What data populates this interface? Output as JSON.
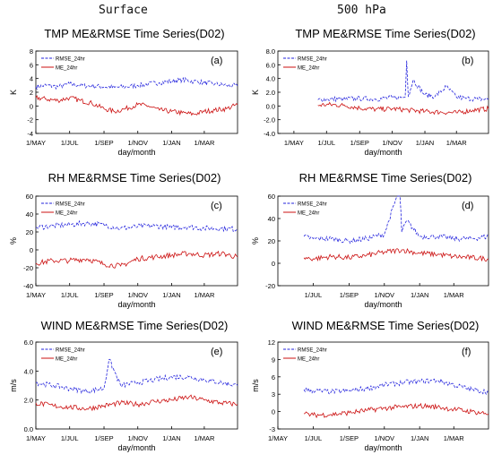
{
  "column_headers": [
    "Surface",
    "500 hPa"
  ],
  "colors": {
    "rmse": "#2222dd",
    "me": "#cc1111",
    "axis": "#000000"
  },
  "chart_data": [
    {
      "type": "line",
      "panel_label": "(a)",
      "title": "TMP ME&RMSE Time Series(D02)",
      "xlabel": "day/month",
      "ylabel": "K",
      "x_tick_labels": [
        "1/MAY",
        "1/JUL",
        "1/SEP",
        "1/NOV",
        "1/JAN",
        "1/MAR"
      ],
      "xlim": [
        "2016-05-01",
        "2017-04-30"
      ],
      "ylim": [
        -4,
        8
      ],
      "y_ticks": [
        -4,
        -2,
        0,
        2,
        4,
        6,
        8
      ],
      "y_tick_labels": [
        "-4",
        "-2",
        "0",
        "2",
        "4",
        "6",
        "8"
      ],
      "legend_position": "top-left",
      "series": [
        {
          "name": "RMSE_24hr",
          "style": "dashed",
          "color": "#2222dd",
          "x": [
            "2016-05-01",
            "2016-05-20",
            "2016-06-10",
            "2016-07-01",
            "2016-07-20",
            "2016-08-10",
            "2016-09-01",
            "2016-09-20",
            "2016-10-10",
            "2016-11-01",
            "2016-11-20",
            "2016-12-10",
            "2017-01-01",
            "2017-01-20",
            "2017-02-10",
            "2017-03-01",
            "2017-03-20",
            "2017-04-10",
            "2017-04-30"
          ],
          "values": [
            2.8,
            3.0,
            2.8,
            3.2,
            3.0,
            2.9,
            2.8,
            2.7,
            2.8,
            3.0,
            3.2,
            3.4,
            3.6,
            3.8,
            3.6,
            3.4,
            3.2,
            3.0,
            2.9
          ]
        },
        {
          "name": "ME_24hr",
          "style": "solid",
          "color": "#cc1111",
          "x": [
            "2016-05-01",
            "2016-05-20",
            "2016-06-10",
            "2016-07-01",
            "2016-07-20",
            "2016-08-10",
            "2016-09-01",
            "2016-09-20",
            "2016-10-10",
            "2016-11-01",
            "2016-11-20",
            "2016-12-10",
            "2017-01-01",
            "2017-01-20",
            "2017-02-10",
            "2017-03-01",
            "2017-03-20",
            "2017-04-10",
            "2017-04-30"
          ],
          "values": [
            1.2,
            1.0,
            0.8,
            1.2,
            0.8,
            0.4,
            -0.4,
            -0.8,
            -0.4,
            0.2,
            0.0,
            -0.6,
            -0.8,
            -1.0,
            -1.2,
            -0.8,
            -0.6,
            -0.4,
            0.2
          ]
        }
      ]
    },
    {
      "type": "line",
      "panel_label": "(b)",
      "title": "TMP ME&RMSE Time Series(D02)",
      "xlabel": "day/month",
      "ylabel": "K",
      "x_tick_labels": [
        "1/MAY",
        "1/JUL",
        "1/SEP",
        "1/NOV",
        "1/JAN",
        "1/MAR"
      ],
      "xlim": [
        "2016-04-01",
        "2017-04-30"
      ],
      "ylim": [
        -4,
        8
      ],
      "y_ticks": [
        -4,
        -2,
        0,
        2,
        4,
        6,
        8
      ],
      "y_tick_labels": [
        "-4.0",
        "-2.0",
        "0.0",
        "2.0",
        "4.0",
        "6.0",
        "8.0"
      ],
      "legend_position": "top-left",
      "series": [
        {
          "name": "RMSE_24hr",
          "style": "dashed",
          "color": "#2222dd",
          "x": [
            "2016-06-15",
            "2016-07-01",
            "2016-08-01",
            "2016-09-01",
            "2016-10-01",
            "2016-11-01",
            "2016-11-25",
            "2016-11-28",
            "2016-12-01",
            "2016-12-10",
            "2017-01-01",
            "2017-01-20",
            "2017-02-10",
            "2017-03-01",
            "2017-03-20",
            "2017-04-10",
            "2017-04-30"
          ],
          "values": [
            0.9,
            1.0,
            1.0,
            1.1,
            1.0,
            1.2,
            1.3,
            6.6,
            1.4,
            3.8,
            1.6,
            1.4,
            2.8,
            1.3,
            1.1,
            1.0,
            1.0
          ]
        },
        {
          "name": "ME_24hr",
          "style": "solid",
          "color": "#cc1111",
          "x": [
            "2016-06-15",
            "2016-07-01",
            "2016-08-01",
            "2016-09-01",
            "2016-10-01",
            "2016-11-01",
            "2016-12-01",
            "2017-01-01",
            "2017-02-01",
            "2017-03-01",
            "2017-04-01",
            "2017-04-30"
          ],
          "values": [
            0.1,
            0.2,
            0.1,
            -0.3,
            -0.5,
            -0.4,
            -0.6,
            -0.8,
            -0.9,
            -1.0,
            -0.6,
            -0.4
          ]
        }
      ]
    },
    {
      "type": "line",
      "panel_label": "(c)",
      "title": "RH ME&RMSE Time Series(D02)",
      "xlabel": "day/month",
      "ylabel": "%",
      "x_tick_labels": [
        "1/MAY",
        "1/JUL",
        "1/SEP",
        "1/NOV",
        "1/JAN",
        "1/MAR"
      ],
      "xlim": [
        "2016-05-01",
        "2017-04-30"
      ],
      "ylim": [
        -40,
        60
      ],
      "y_ticks": [
        -40,
        -20,
        0,
        20,
        40,
        60
      ],
      "y_tick_labels": [
        "-40",
        "-20",
        "0",
        "20",
        "40",
        "60"
      ],
      "legend_position": "top-left",
      "series": [
        {
          "name": "RMSE_24hr",
          "style": "dashed",
          "color": "#2222dd",
          "x": [
            "2016-05-01",
            "2016-06-01",
            "2016-07-01",
            "2016-08-01",
            "2016-09-01",
            "2016-10-01",
            "2016-11-01",
            "2016-12-01",
            "2017-01-01",
            "2017-02-01",
            "2017-03-01",
            "2017-04-01",
            "2017-04-30"
          ],
          "values": [
            25,
            27,
            28,
            30,
            28,
            24,
            26,
            27,
            25,
            26,
            24,
            24,
            23
          ]
        },
        {
          "name": "ME_24hr",
          "style": "solid",
          "color": "#cc1111",
          "x": [
            "2016-05-01",
            "2016-06-01",
            "2016-07-01",
            "2016-08-01",
            "2016-09-01",
            "2016-10-01",
            "2016-11-01",
            "2016-12-01",
            "2017-01-01",
            "2017-02-01",
            "2017-03-01",
            "2017-04-01",
            "2017-04-30"
          ],
          "values": [
            -15,
            -12,
            -12,
            -10,
            -16,
            -18,
            -10,
            -8,
            -6,
            -4,
            -6,
            -4,
            -8
          ]
        }
      ]
    },
    {
      "type": "line",
      "panel_label": "(d)",
      "title": "RH ME&RMSE Time Series(D02)",
      "xlabel": "day/month",
      "ylabel": "%",
      "x_tick_labels": [
        "1/JUL",
        "1/SEP",
        "1/NOV",
        "1/JAN",
        "1/MAR"
      ],
      "xlim": [
        "2016-05-01",
        "2017-04-30"
      ],
      "ylim": [
        -20,
        60
      ],
      "y_ticks": [
        -20,
        0,
        20,
        40,
        60
      ],
      "y_tick_labels": [
        "-20",
        "0",
        "20",
        "40",
        "60"
      ],
      "legend_position": "top-left",
      "series": [
        {
          "name": "RMSE_24hr",
          "style": "dashed",
          "color": "#2222dd",
          "x": [
            "2016-06-15",
            "2016-07-01",
            "2016-08-01",
            "2016-09-01",
            "2016-10-01",
            "2016-11-01",
            "2016-11-28",
            "2016-12-01",
            "2016-12-10",
            "2017-01-01",
            "2017-02-01",
            "2017-03-01",
            "2017-04-01",
            "2017-04-30"
          ],
          "values": [
            24,
            22,
            22,
            20,
            22,
            26,
            68,
            28,
            38,
            24,
            24,
            22,
            22,
            24
          ]
        },
        {
          "name": "ME_24hr",
          "style": "solid",
          "color": "#cc1111",
          "x": [
            "2016-06-15",
            "2016-07-01",
            "2016-08-01",
            "2016-09-01",
            "2016-10-01",
            "2016-11-01",
            "2016-12-01",
            "2017-01-01",
            "2017-02-01",
            "2017-03-01",
            "2017-04-01",
            "2017-04-30"
          ],
          "values": [
            5,
            4,
            6,
            5,
            7,
            10,
            12,
            9,
            8,
            6,
            5,
            4
          ]
        }
      ]
    },
    {
      "type": "line",
      "panel_label": "(e)",
      "title": "WIND ME&RMSE Time Series(D02)",
      "xlabel": "day/month",
      "ylabel": "m/s",
      "x_tick_labels": [
        "1/MAY",
        "1/JUL",
        "1/SEP",
        "1/NOV",
        "1/JAN",
        "1/MAR"
      ],
      "xlim": [
        "2016-05-01",
        "2017-04-30"
      ],
      "ylim": [
        0,
        6
      ],
      "y_ticks": [
        0,
        2,
        4,
        6
      ],
      "y_tick_labels": [
        "0.0",
        "2.0",
        "4.0",
        "6.0"
      ],
      "legend_position": "top-left",
      "series": [
        {
          "name": "RMSE_24hr",
          "style": "dashed",
          "color": "#2222dd",
          "x": [
            "2016-05-01",
            "2016-06-01",
            "2016-07-01",
            "2016-08-01",
            "2016-09-01",
            "2016-09-10",
            "2016-10-01",
            "2016-11-01",
            "2016-12-01",
            "2017-01-01",
            "2017-02-01",
            "2017-03-01",
            "2017-04-01",
            "2017-04-30"
          ],
          "values": [
            3.2,
            3.0,
            2.8,
            2.6,
            2.8,
            4.8,
            3.0,
            3.2,
            3.4,
            3.6,
            3.6,
            3.4,
            3.2,
            3.0
          ]
        },
        {
          "name": "ME_24hr",
          "style": "solid",
          "color": "#cc1111",
          "x": [
            "2016-05-01",
            "2016-06-01",
            "2016-07-01",
            "2016-08-01",
            "2016-09-01",
            "2016-10-01",
            "2016-11-01",
            "2016-12-01",
            "2017-01-01",
            "2017-02-01",
            "2017-03-01",
            "2017-04-01",
            "2017-04-30"
          ],
          "values": [
            1.8,
            1.6,
            1.5,
            1.4,
            1.6,
            1.8,
            1.7,
            1.9,
            2.0,
            2.2,
            2.0,
            1.8,
            1.7
          ]
        }
      ]
    },
    {
      "type": "line",
      "panel_label": "(f)",
      "title": "WIND ME&RMSE Time Series(D02)",
      "xlabel": "day/month",
      "ylabel": "m/s",
      "x_tick_labels": [
        "1/MAY",
        "1/JUL",
        "1/SEP",
        "1/NOV",
        "1/JAN",
        "1/MAR"
      ],
      "xlim": [
        "2016-05-01",
        "2017-04-30"
      ],
      "ylim": [
        -3,
        12
      ],
      "y_ticks": [
        -3,
        0,
        3,
        6,
        9,
        12
      ],
      "y_tick_labels": [
        "-3",
        "0",
        "3",
        "6",
        "9",
        "12"
      ],
      "legend_position": "top-left",
      "series": [
        {
          "name": "RMSE_24hr",
          "style": "dashed",
          "color": "#2222dd",
          "x": [
            "2016-06-15",
            "2016-07-01",
            "2016-08-01",
            "2016-09-01",
            "2016-10-01",
            "2016-11-01",
            "2016-12-01",
            "2017-01-01",
            "2017-02-01",
            "2017-03-01",
            "2017-04-01",
            "2017-04-30"
          ],
          "values": [
            3.8,
            3.6,
            3.4,
            3.6,
            4.0,
            4.6,
            5.0,
            5.2,
            5.4,
            4.6,
            3.8,
            3.4
          ]
        },
        {
          "name": "ME_24hr",
          "style": "solid",
          "color": "#cc1111",
          "x": [
            "2016-06-15",
            "2016-07-01",
            "2016-08-01",
            "2016-09-01",
            "2016-10-01",
            "2016-11-01",
            "2016-12-01",
            "2017-01-01",
            "2017-02-01",
            "2017-03-01",
            "2017-04-01",
            "2017-04-30"
          ],
          "values": [
            -0.4,
            -0.6,
            -0.5,
            -0.2,
            0.2,
            0.6,
            0.8,
            1.0,
            0.8,
            0.4,
            0.0,
            -0.4
          ]
        }
      ]
    }
  ]
}
